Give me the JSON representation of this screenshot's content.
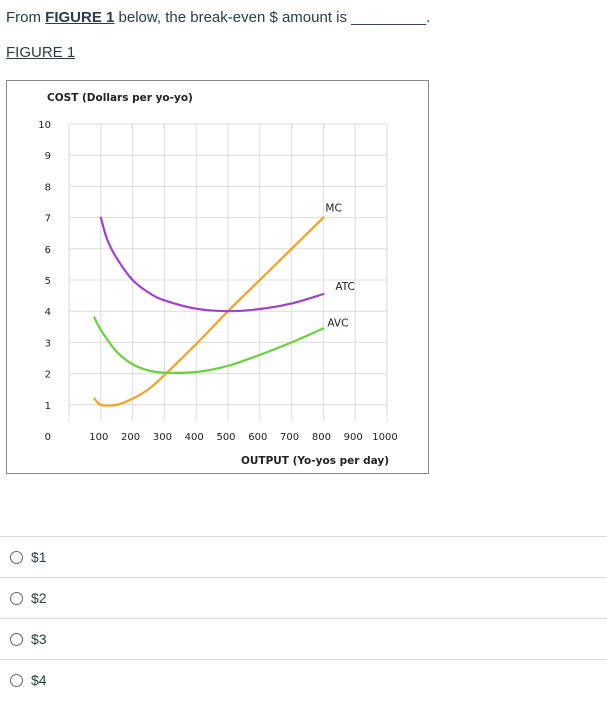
{
  "question": {
    "prefix": "From ",
    "figure_ref": "FIGURE 1",
    "suffix": " below, the break-even $ amount is _________."
  },
  "figure_label": "FIGURE 1",
  "answers": [
    "$1",
    "$2",
    "$3",
    "$4"
  ],
  "chart_data": {
    "type": "line",
    "ylabel": "COST (Dollars per yo-yo)",
    "xlabel": "OUTPUT (Yo-yos per day)",
    "x_ticks": [
      100,
      200,
      300,
      400,
      500,
      600,
      700,
      800,
      900,
      1000
    ],
    "y_ticks": [
      0,
      1,
      2,
      3,
      4,
      5,
      6,
      7,
      8,
      9,
      10
    ],
    "xlim": [
      0,
      1000
    ],
    "ylim": [
      0,
      10
    ],
    "grid": true,
    "series": [
      {
        "name": "MC",
        "color": "#f5a020",
        "points": [
          [
            80,
            1.2
          ],
          [
            100,
            1.0
          ],
          [
            150,
            1.0
          ],
          [
            200,
            1.2
          ],
          [
            250,
            1.5
          ],
          [
            300,
            1.95
          ],
          [
            400,
            2.95
          ],
          [
            500,
            4.0
          ],
          [
            600,
            5.0
          ],
          [
            700,
            6.0
          ],
          [
            800,
            7.0
          ]
        ]
      },
      {
        "name": "ATC",
        "color": "#a040d0",
        "points": [
          [
            100,
            7.0
          ],
          [
            120,
            6.3
          ],
          [
            150,
            5.7
          ],
          [
            200,
            5.0
          ],
          [
            250,
            4.6
          ],
          [
            300,
            4.35
          ],
          [
            400,
            4.08
          ],
          [
            500,
            4.0
          ],
          [
            600,
            4.07
          ],
          [
            700,
            4.25
          ],
          [
            800,
            4.55
          ]
        ]
      },
      {
        "name": "AVC",
        "color": "#6ad040",
        "points": [
          [
            80,
            3.8
          ],
          [
            100,
            3.4
          ],
          [
            150,
            2.7
          ],
          [
            200,
            2.3
          ],
          [
            250,
            2.1
          ],
          [
            300,
            2.03
          ],
          [
            400,
            2.05
          ],
          [
            500,
            2.25
          ],
          [
            600,
            2.6
          ],
          [
            700,
            3.0
          ],
          [
            800,
            3.45
          ]
        ]
      }
    ]
  }
}
